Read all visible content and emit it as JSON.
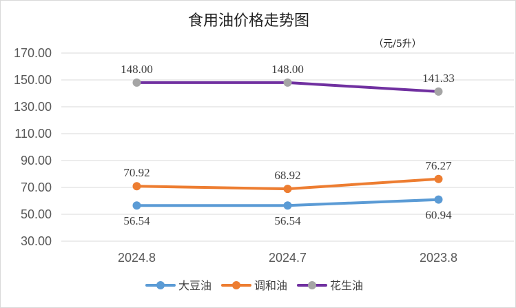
{
  "chart_data": {
    "type": "line",
    "title": "食用油价格走势图",
    "unit_note": "（元/5升）",
    "categories": [
      "2024.8",
      "2024.7",
      "2023.8"
    ],
    "y_ticks": [
      "30.00",
      "50.00",
      "70.00",
      "90.00",
      "110.00",
      "130.00",
      "150.00",
      "170.00"
    ],
    "ylim": [
      30,
      170
    ],
    "grid": true,
    "legend_position": "bottom",
    "series": [
      {
        "name": "大豆油",
        "values": [
          56.54,
          56.54,
          60.94
        ],
        "labels": [
          "56.54",
          "56.54",
          "60.94"
        ],
        "label_side": "below",
        "color": "#5b9bd5"
      },
      {
        "name": "调和油",
        "values": [
          70.92,
          68.92,
          76.27
        ],
        "labels": [
          "70.92",
          "68.92",
          "76.27"
        ],
        "label_side": "above",
        "color": "#ed7d31"
      },
      {
        "name": "花生油",
        "values": [
          148.0,
          148.0,
          141.33
        ],
        "labels": [
          "148.00",
          "148.00",
          "141.33"
        ],
        "label_side": "above",
        "color": "#7030a0",
        "marker_color": "#a5a5a5"
      }
    ]
  }
}
